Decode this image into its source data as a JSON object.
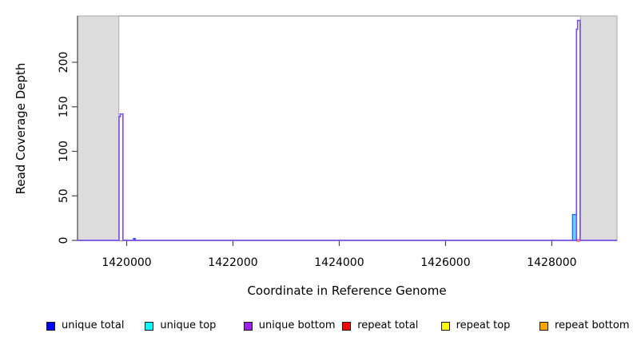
{
  "chart_data": {
    "type": "area",
    "title": "",
    "xlabel": "Coordinate in Reference Genome",
    "ylabel": "Read Coverage Depth",
    "x_ticks": [
      1420000,
      1422000,
      1424000,
      1426000,
      1428000
    ],
    "y_ticks": [
      0,
      50,
      100,
      150,
      200
    ],
    "x_range": [
      1419075,
      1429227
    ],
    "y_range": [
      0,
      252
    ],
    "grid": "off",
    "legend_position": "bottom",
    "shaded_regions": [
      {
        "x1": 1419075,
        "x2": 1419852,
        "fill": "#DCDCDC",
        "stroke": "#ACACAC"
      },
      {
        "x1": 1428540,
        "x2": 1429227,
        "fill": "#DCDCDC",
        "stroke": "#ACACAC"
      }
    ],
    "series": [
      {
        "name": "unique total",
        "type": "bar",
        "x1": 1420128,
        "x2": 1420162,
        "height": 2,
        "fill": "#2B49E8",
        "stroke": "#2B49E8"
      },
      {
        "name": "unique top",
        "type": "bar",
        "x1": 1428390,
        "x2": 1428470,
        "height": 29,
        "fill": "#5FD8F0",
        "stroke": "#2F6BF0"
      },
      {
        "name": "repeat total",
        "type": "baseline-bar",
        "x1": 1428462,
        "x2": 1428528,
        "height": 1.5,
        "fill": "#FF7070",
        "stroke": "none"
      },
      {
        "name": "unique bottom",
        "type": "outline",
        "stroke": "#7B55E8",
        "fill": "#FFFFFF",
        "points": [
          [
            1419075,
            0
          ],
          [
            1419856,
            0
          ],
          [
            1419856,
            139
          ],
          [
            1419880,
            139
          ],
          [
            1419880,
            142
          ],
          [
            1419930,
            142
          ],
          [
            1419930,
            0
          ],
          [
            1428464,
            0
          ],
          [
            1428464,
            237
          ],
          [
            1428486,
            237
          ],
          [
            1428486,
            247
          ],
          [
            1428532,
            247
          ],
          [
            1428532,
            0
          ],
          [
            1429227,
            0
          ]
        ]
      }
    ],
    "legend": [
      {
        "label": "unique total",
        "color": "#0000FF"
      },
      {
        "label": "unique top",
        "color": "#00FFFF"
      },
      {
        "label": "unique bottom",
        "color": "#A020F0"
      },
      {
        "label": "repeat total",
        "color": "#FF0000"
      },
      {
        "label": "repeat top",
        "color": "#FFFF00"
      },
      {
        "label": "repeat bottom",
        "color": "#FFA500"
      }
    ]
  }
}
